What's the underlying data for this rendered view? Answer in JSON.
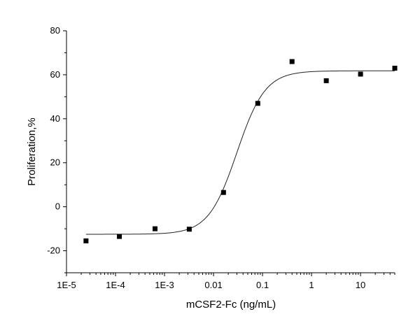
{
  "chart_data": {
    "type": "scatter",
    "title": "",
    "xlabel": "mCSF2-Fc (ng/mL)",
    "ylabel": "Proliferation,%",
    "xscale": "log",
    "xlim": [
      1e-05,
      50
    ],
    "ylim": [
      -30,
      80
    ],
    "x_ticks": [
      {
        "value": 1e-05,
        "label": "1E-5"
      },
      {
        "value": 0.0001,
        "label": "1E-4"
      },
      {
        "value": 0.001,
        "label": "1E-3"
      },
      {
        "value": 0.01,
        "label": "0.01"
      },
      {
        "value": 0.1,
        "label": "0.1"
      },
      {
        "value": 1,
        "label": "1"
      },
      {
        "value": 10,
        "label": "10"
      }
    ],
    "y_ticks": [
      {
        "value": 80,
        "label": "80"
      },
      {
        "value": 60,
        "label": "60"
      },
      {
        "value": 40,
        "label": "40"
      },
      {
        "value": 20,
        "label": "20"
      },
      {
        "value": 0,
        "label": "0"
      },
      {
        "value": -20,
        "label": "-20"
      }
    ],
    "grid": false,
    "legend": "none",
    "series": [
      {
        "marker": "square",
        "color": "#000000",
        "points": [
          {
            "x": 2.5e-05,
            "y": -15.5
          },
          {
            "x": 0.00012,
            "y": -13.5
          },
          {
            "x": 0.00064,
            "y": -10
          },
          {
            "x": 0.0032,
            "y": -10.2
          },
          {
            "x": 0.016,
            "y": 6.5
          },
          {
            "x": 0.08,
            "y": 47
          },
          {
            "x": 0.4,
            "y": 66
          },
          {
            "x": 2,
            "y": 57.3
          },
          {
            "x": 10,
            "y": 60.3
          },
          {
            "x": 50,
            "y": 63
          }
        ]
      }
    ],
    "fit": {
      "type": "sigmoidal-logistic",
      "color": "#222222",
      "bottom": -12.5,
      "top": 61.8,
      "ec50": 0.03,
      "hill": 1.5
    }
  }
}
